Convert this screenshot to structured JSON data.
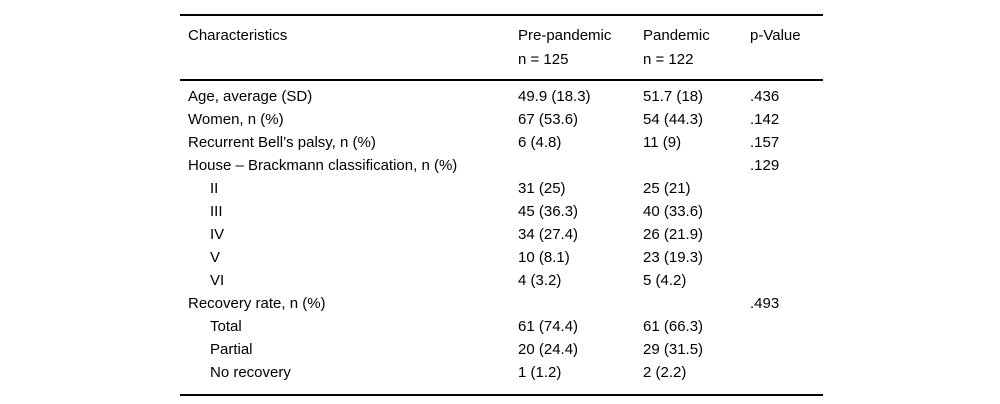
{
  "table": {
    "columns": [
      {
        "label": "Characteristics",
        "sub": ""
      },
      {
        "label": "Pre-pandemic",
        "sub": "n = 125"
      },
      {
        "label": "Pandemic",
        "sub": "n = 122"
      },
      {
        "label": "p-Value",
        "sub": ""
      }
    ],
    "rows": [
      {
        "label": "Age, average (SD)",
        "indent": false,
        "prepandemic": "49.9 (18.3)",
        "pandemic": "51.7 (18)",
        "pvalue": ".436"
      },
      {
        "label": "Women, n (%)",
        "indent": false,
        "prepandemic": "67 (53.6)",
        "pandemic": "54 (44.3)",
        "pvalue": ".142"
      },
      {
        "label": "Recurrent Bell’s palsy, n (%)",
        "indent": false,
        "prepandemic": "6 (4.8)",
        "pandemic": "11 (9)",
        "pvalue": ".157"
      },
      {
        "label": "House – Brackmann classification, n (%)",
        "indent": false,
        "prepandemic": "",
        "pandemic": "",
        "pvalue": ".129"
      },
      {
        "label": "II",
        "indent": true,
        "prepandemic": "31 (25)",
        "pandemic": "25 (21)",
        "pvalue": ""
      },
      {
        "label": "III",
        "indent": true,
        "prepandemic": "45 (36.3)",
        "pandemic": "40 (33.6)",
        "pvalue": ""
      },
      {
        "label": "IV",
        "indent": true,
        "prepandemic": "34 (27.4)",
        "pandemic": "26 (21.9)",
        "pvalue": ""
      },
      {
        "label": "V",
        "indent": true,
        "prepandemic": "10 (8.1)",
        "pandemic": "23 (19.3)",
        "pvalue": ""
      },
      {
        "label": "VI",
        "indent": true,
        "prepandemic": "4 (3.2)",
        "pandemic": "5 (4.2)",
        "pvalue": ""
      },
      {
        "label": "Recovery rate, n (%)",
        "indent": false,
        "prepandemic": "",
        "pandemic": "",
        "pvalue": ".493"
      },
      {
        "label": "Total",
        "indent": true,
        "prepandemic": "61 (74.4)",
        "pandemic": "61 (66.3)",
        "pvalue": ""
      },
      {
        "label": "Partial",
        "indent": true,
        "prepandemic": "20 (24.4)",
        "pandemic": "29 (31.5)",
        "pvalue": ""
      },
      {
        "label": "No recovery",
        "indent": true,
        "prepandemic": "1 (1.2)",
        "pandemic": "2 (2.2)",
        "pvalue": ""
      }
    ],
    "colors": {
      "text": "#000000",
      "rule": "#000000",
      "background": "#ffffff"
    }
  }
}
